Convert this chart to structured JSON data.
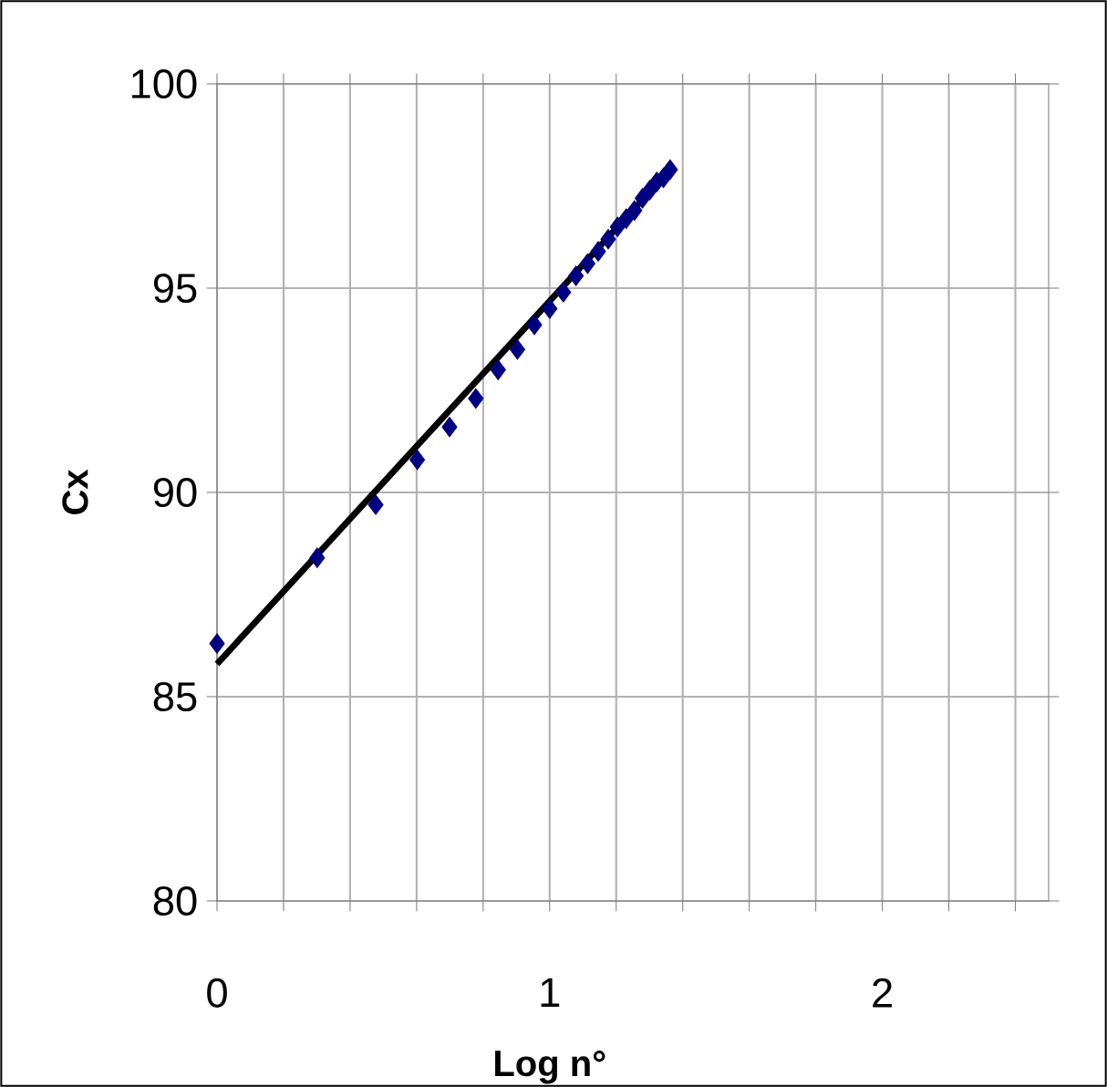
{
  "chart_data": {
    "type": "scatter",
    "xlabel": "Log n°",
    "ylabel": "Cx",
    "xlim": [
      0,
      2.5
    ],
    "ylim": [
      80,
      100
    ],
    "xticks": [
      0,
      {
        "value": 0.2,
        "label": null
      },
      {
        "value": 0.4,
        "label": null
      },
      {
        "value": 0.6,
        "label": null
      },
      {
        "value": 0.8,
        "label": null
      },
      1,
      {
        "value": 1.2,
        "label": null
      },
      {
        "value": 1.4,
        "label": null
      },
      {
        "value": 1.6,
        "label": null
      },
      {
        "value": 1.8,
        "label": null
      },
      2,
      {
        "value": 2.2,
        "label": null
      },
      {
        "value": 2.4,
        "label": null
      }
    ],
    "yticks": [
      80,
      85,
      90,
      95,
      100
    ],
    "grid": true,
    "series": [
      {
        "color": "#000080",
        "marker": "diamond",
        "x": [
          0,
          0.301,
          0.477,
          0.602,
          0.699,
          0.778,
          0.845,
          0.903,
          0.954,
          1.0,
          1.041,
          1.079,
          1.114,
          1.146,
          1.176,
          1.204,
          1.23,
          1.255,
          1.279,
          1.301,
          1.322,
          1.342,
          1.362
        ],
        "values": [
          86.3,
          88.4,
          89.7,
          90.8,
          91.6,
          92.3,
          93.0,
          93.5,
          94.1,
          94.5,
          94.9,
          95.3,
          95.6,
          95.9,
          96.2,
          96.5,
          96.7,
          96.9,
          97.2,
          97.4,
          97.6,
          97.7,
          97.9
        ]
      },
      {
        "type": "line",
        "color": "#000000",
        "marker": "none",
        "line_style": "solid",
        "x": [
          0,
          1.362
        ],
        "values": [
          85.8,
          97.9
        ]
      }
    ]
  }
}
